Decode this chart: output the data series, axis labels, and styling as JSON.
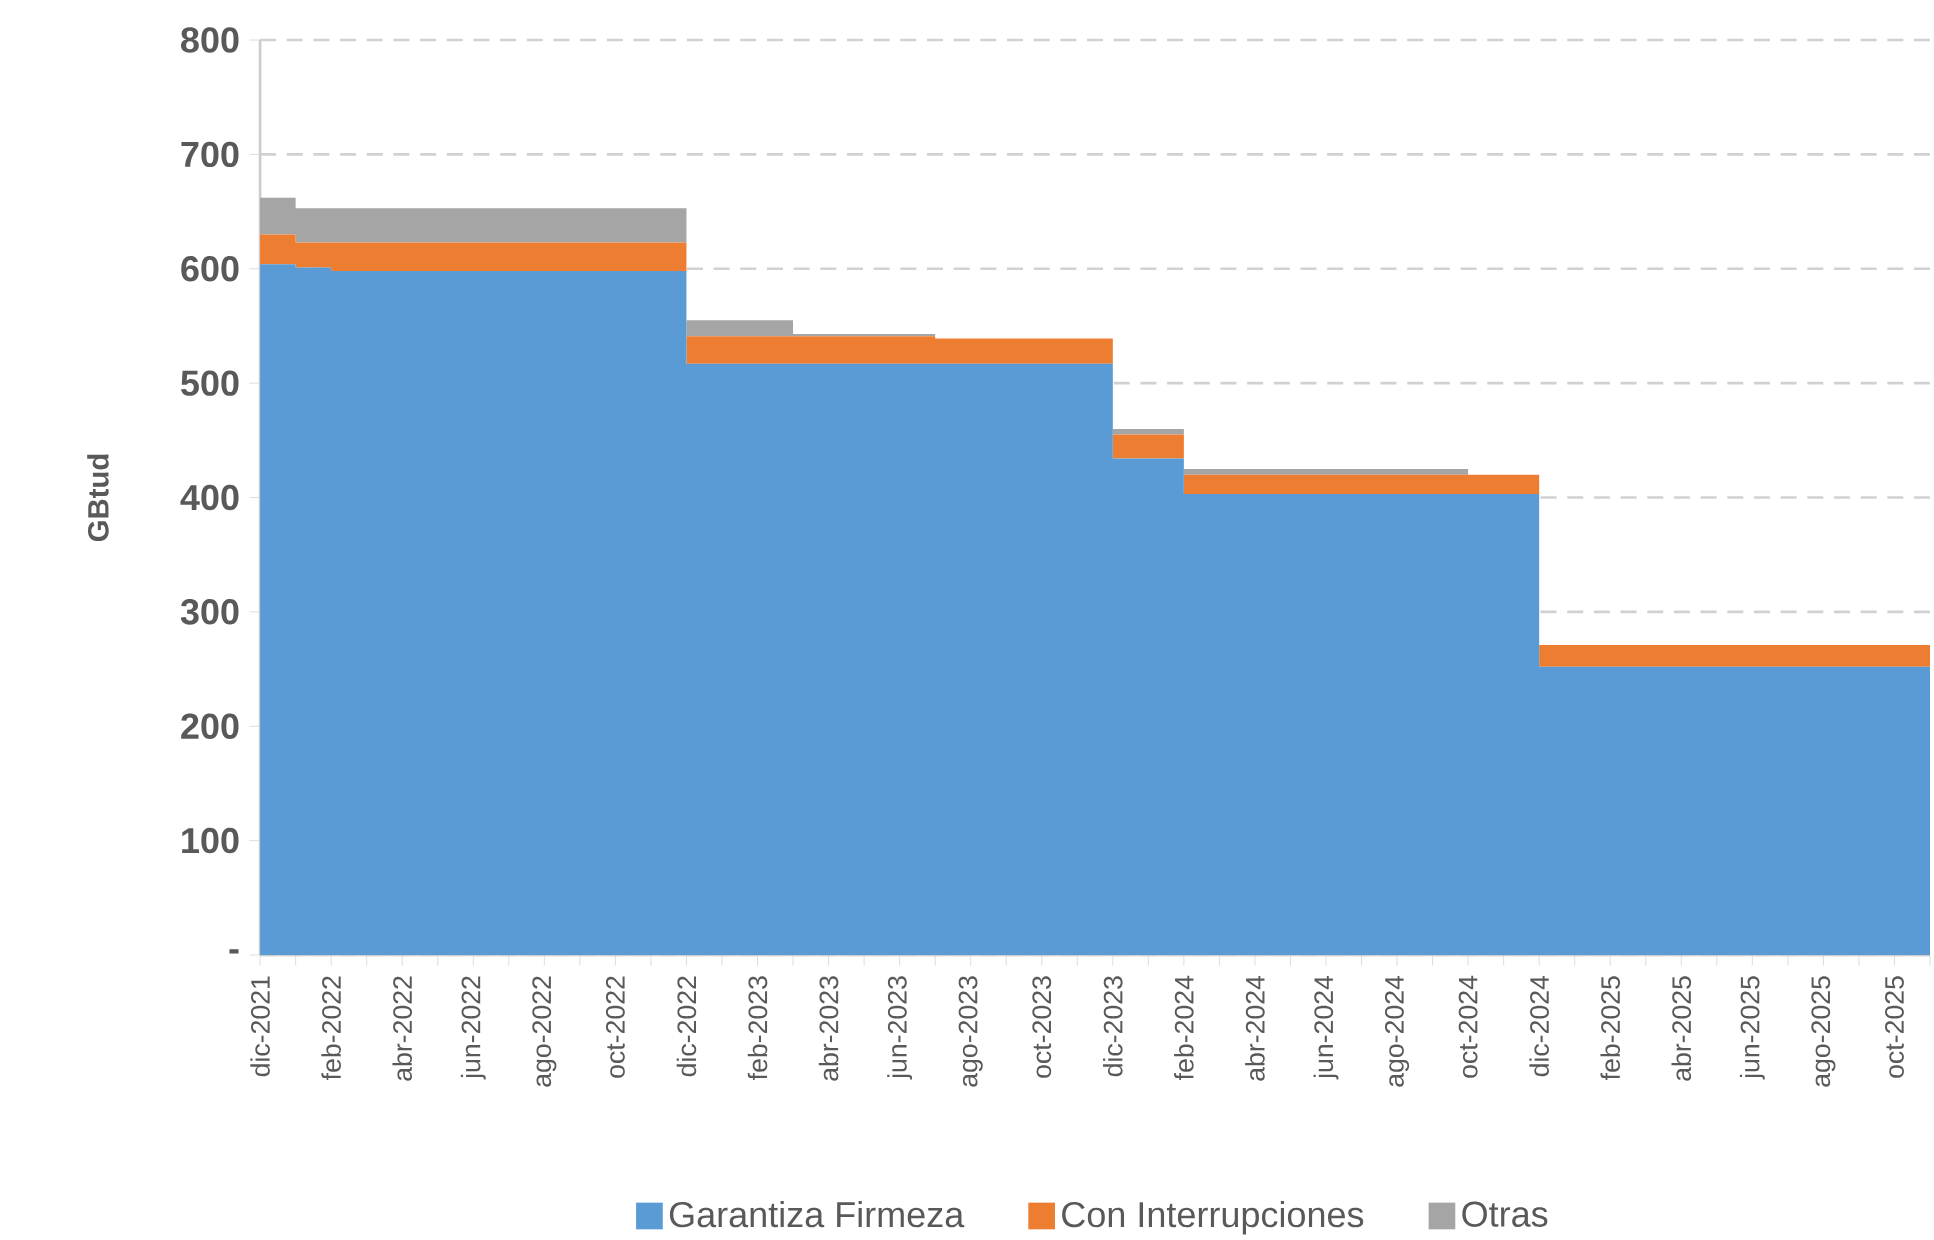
{
  "chart_data": {
    "type": "area",
    "stacked": true,
    "ylabel": "GBtud",
    "categories": [
      "dic-2021",
      null,
      "feb-2022",
      null,
      "abr-2022",
      null,
      "jun-2022",
      null,
      "ago-2022",
      null,
      "oct-2022",
      null,
      "dic-2022",
      null,
      "feb-2023",
      null,
      "abr-2023",
      null,
      "jun-2023",
      null,
      "ago-2023",
      null,
      "oct-2023",
      null,
      "dic-2023",
      null,
      "feb-2024",
      null,
      "abr-2024",
      null,
      "jun-2024",
      null,
      "ago-2024",
      null,
      "oct-2024",
      null,
      "dic-2024",
      null,
      "feb-2025",
      null,
      "abr-2025",
      null,
      "jun-2025",
      null,
      "ago-2025",
      null,
      "oct-2025",
      null
    ],
    "series": [
      {
        "name": "Garantiza Firmeza",
        "color": "#5b9bd5",
        "values": [
          604,
          601,
          598,
          598,
          598,
          598,
          598,
          598,
          598,
          598,
          598,
          598,
          517,
          517,
          517,
          517,
          517,
          517,
          517,
          517,
          517,
          517,
          517,
          517,
          434,
          434,
          403,
          403,
          403,
          403,
          403,
          403,
          403,
          403,
          403,
          403,
          252,
          252,
          252,
          252,
          252,
          252,
          252,
          252,
          252,
          252,
          252,
          252
        ]
      },
      {
        "name": "Con Interrupciones",
        "color": "#ed7d31",
        "values": [
          26,
          22,
          25,
          25,
          25,
          25,
          25,
          25,
          25,
          25,
          25,
          25,
          24,
          24,
          24,
          24,
          24,
          24,
          24,
          22,
          22,
          22,
          22,
          22,
          21,
          21,
          17,
          17,
          17,
          17,
          17,
          17,
          17,
          17,
          17,
          17,
          19,
          19,
          19,
          19,
          19,
          19,
          19,
          19,
          19,
          19,
          19,
          19
        ]
      },
      {
        "name": "Otras",
        "color": "#a5a5a5",
        "values": [
          32,
          30,
          30,
          30,
          30,
          30,
          30,
          30,
          30,
          30,
          30,
          30,
          14,
          14,
          14,
          2,
          2,
          2,
          2,
          0,
          0,
          0,
          0,
          0,
          5,
          5,
          5,
          5,
          5,
          5,
          5,
          5,
          5,
          5,
          0,
          0,
          0,
          0,
          0,
          0,
          0,
          0,
          0,
          0,
          0,
          0,
          0,
          0
        ]
      }
    ],
    "ylim": [
      0,
      800
    ],
    "yticks": [
      {
        "value": 0,
        "label": "-"
      },
      100,
      200,
      300,
      400,
      500,
      600,
      700,
      800
    ],
    "grid": "y",
    "legend": "bottom"
  }
}
